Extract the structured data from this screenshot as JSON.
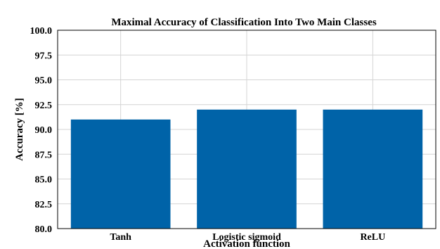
{
  "chart_data": {
    "type": "bar",
    "title": "Maximal Accuracy of Classification Into Two Main Classes",
    "xlabel": "Activation function",
    "ylabel": "Accuracy [%]",
    "categories": [
      "Tanh",
      "Logistic sigmoid",
      "ReLU"
    ],
    "values": [
      91.0,
      92.0,
      92.0
    ],
    "ylim": [
      80.0,
      100.0
    ],
    "yticks": [
      "80.0",
      "82.5",
      "85.0",
      "87.5",
      "90.0",
      "92.5",
      "95.0",
      "97.5",
      "100.0"
    ],
    "grid": true,
    "bar_color": "#0063a8"
  }
}
